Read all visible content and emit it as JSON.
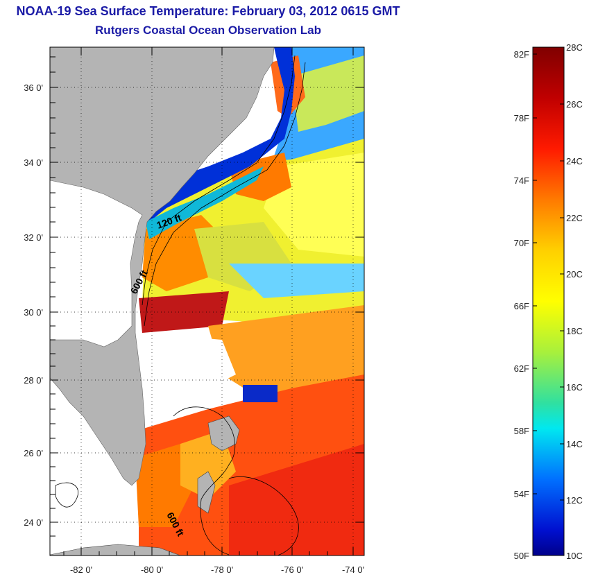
{
  "title": {
    "line1": "NOAA-19 Sea Surface Temperature:  February 03, 2012 0615 GMT",
    "line2": "Rutgers Coastal Ocean Observation Lab"
  },
  "map": {
    "lat_labels": [
      "36 0'",
      "34 0'",
      "32 0'",
      "30 0'",
      "28 0'",
      "26 0'",
      "24 0'"
    ],
    "lon_labels": [
      "-82 0'",
      "-80 0'",
      "-78 0'",
      "-76 0'",
      "-74 0'"
    ],
    "contour_labels": [
      "120 ft",
      "600 ft",
      "600 ft"
    ],
    "land_color": "#b4b4b4",
    "nodata_color": "#ffffff"
  },
  "colorbar": {
    "fahrenheit_labels": [
      "82F",
      "78F",
      "74F",
      "70F",
      "66F",
      "62F",
      "58F",
      "54F",
      "50F"
    ],
    "celsius_labels": [
      "28C",
      "26C",
      "24C",
      "22C",
      "20C",
      "18C",
      "16C",
      "14C",
      "12C",
      "10C"
    ],
    "min_color": "#00008a",
    "max_color": "#800000"
  }
}
